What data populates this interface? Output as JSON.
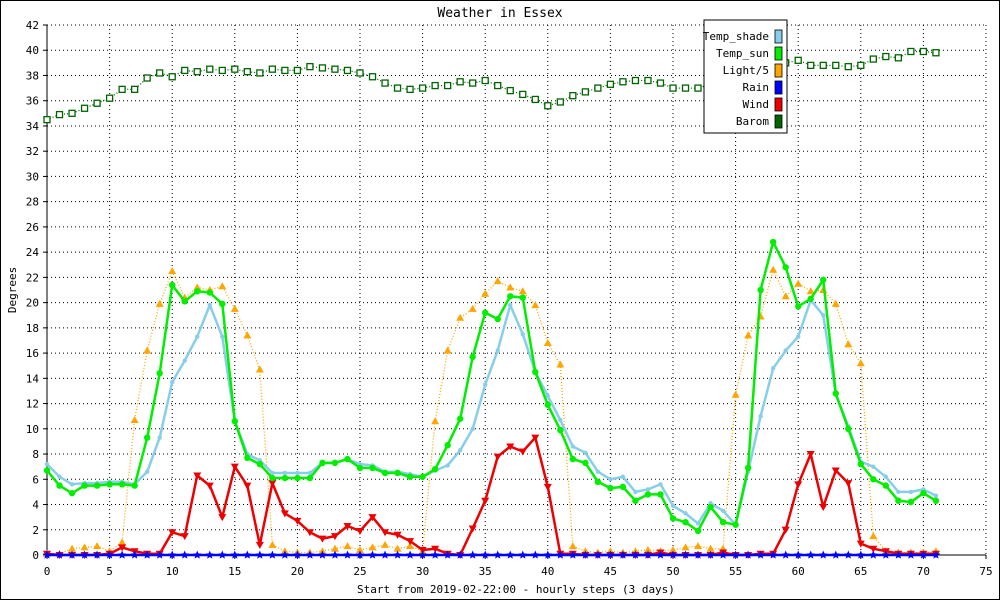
{
  "chart_data": {
    "type": "line",
    "title": "Weather in Essex",
    "xlabel": "Start from 2019-02-22:00 - hourly steps (3 days)",
    "ylabel": "Degrees",
    "xlim": [
      0,
      75
    ],
    "ylim": [
      0,
      42
    ],
    "xticks": [
      "0",
      "5",
      "10",
      "15",
      "20",
      "25",
      "30",
      "35",
      "40",
      "45",
      "50",
      "55",
      "60",
      "65",
      "70",
      "75"
    ],
    "yticks": [
      "0",
      "2",
      "4",
      "6",
      "8",
      "10",
      "12",
      "14",
      "16",
      "18",
      "20",
      "22",
      "24",
      "26",
      "28",
      "30",
      "32",
      "34",
      "36",
      "38",
      "40",
      "42"
    ],
    "grid": true,
    "legend_position": "top-right",
    "series": [
      {
        "name": "Temp_shade",
        "color": "#87ceeb",
        "values": [
          7.2,
          6.2,
          5.6,
          5.7,
          5.7,
          5.8,
          5.8,
          5.6,
          6.6,
          9.3,
          13.7,
          15.4,
          17.3,
          19.8,
          17.3,
          10.6,
          8.0,
          7.5,
          6.5,
          6.5,
          6.5,
          6.5,
          7.3,
          7.3,
          7.6,
          7.2,
          7.1,
          6.6,
          6.6,
          6.4,
          6.2,
          6.7,
          7.1,
          8.3,
          10.0,
          13.5,
          16.2,
          19.8,
          17.5,
          14.5,
          12.6,
          10.7,
          8.6,
          8.1,
          6.6,
          6.0,
          6.2,
          5.0,
          5.2,
          5.6,
          3.9,
          3.3,
          2.5,
          4.1,
          3.5,
          2.4,
          6.6,
          11.0,
          14.8,
          16.2,
          17.3,
          20.2,
          19.0,
          12.7,
          10.2,
          7.4,
          7.0,
          6.2,
          5.0,
          5.0,
          5.2,
          4.7
        ]
      },
      {
        "name": "Temp_sun",
        "color": "#00ee00",
        "values": [
          6.7,
          5.5,
          4.9,
          5.5,
          5.5,
          5.6,
          5.6,
          5.5,
          9.3,
          14.4,
          21.4,
          20.1,
          20.9,
          20.8,
          19.9,
          10.6,
          7.7,
          7.2,
          6.1,
          6.1,
          6.1,
          6.1,
          7.3,
          7.3,
          7.6,
          6.9,
          6.9,
          6.5,
          6.5,
          6.2,
          6.2,
          6.8,
          8.7,
          10.8,
          15.7,
          19.2,
          18.7,
          20.5,
          20.4,
          14.5,
          11.9,
          9.9,
          7.6,
          7.3,
          5.8,
          5.3,
          5.4,
          4.3,
          4.8,
          4.8,
          2.9,
          2.6,
          1.9,
          3.8,
          2.6,
          2.4,
          6.9,
          21.0,
          24.8,
          22.8,
          19.7,
          20.3,
          21.8,
          12.8,
          10.0,
          7.2,
          6.0,
          5.5,
          4.3,
          4.2,
          4.9,
          4.3
        ]
      },
      {
        "name": "Light/5",
        "color": "#ffa500",
        "values": [
          0.1,
          0.1,
          0.5,
          0.6,
          0.7,
          0.3,
          1.0,
          10.7,
          16.2,
          19.9,
          22.5,
          20.4,
          21.2,
          21.0,
          21.3,
          19.5,
          17.4,
          14.7,
          0.8,
          0.3,
          0.2,
          0.2,
          0.3,
          0.5,
          0.7,
          0.4,
          0.6,
          0.8,
          0.5,
          0.7,
          0.3,
          10.6,
          16.2,
          18.8,
          19.5,
          20.7,
          21.7,
          21.2,
          20.9,
          19.8,
          16.8,
          15.1,
          0.7,
          0.3,
          0.2,
          0.3,
          0.2,
          0.3,
          0.4,
          0.3,
          0.4,
          0.6,
          0.7,
          0.5,
          0.5,
          12.7,
          17.4,
          18.9,
          22.6,
          20.5,
          21.5,
          20.9,
          21.0,
          19.9,
          16.7,
          15.2,
          1.5,
          0.3,
          0.2,
          0.2,
          0.2,
          0.3
        ]
      },
      {
        "name": "Rain",
        "color": "#0000ff",
        "values": [
          0,
          0,
          0,
          0,
          0,
          0,
          0,
          0,
          0,
          0,
          0,
          0,
          0,
          0,
          0,
          0,
          0,
          0,
          0,
          0,
          0,
          0,
          0,
          0,
          0,
          0,
          0,
          0,
          0,
          0,
          0,
          0,
          0,
          0,
          0,
          0,
          0,
          0,
          0,
          0,
          0,
          0,
          0,
          0,
          0,
          0,
          0,
          0,
          0,
          0,
          0,
          0,
          0,
          0,
          0,
          0,
          0,
          0,
          0,
          0,
          0,
          0,
          0,
          0,
          0,
          0,
          0,
          0,
          0,
          0,
          0,
          0
        ]
      },
      {
        "name": "Wind",
        "color": "#ee0000",
        "values": [
          0.1,
          0,
          0,
          0,
          0,
          0.1,
          0.6,
          0.3,
          0.1,
          0.1,
          1.8,
          1.5,
          6.3,
          5.5,
          3.0,
          7.0,
          5.5,
          0.8,
          5.7,
          3.3,
          2.7,
          1.8,
          1.3,
          1.5,
          2.3,
          1.9,
          3.0,
          1.8,
          1.6,
          1.1,
          0.4,
          0.5,
          0.1,
          0,
          2.1,
          4.3,
          7.8,
          8.6,
          8.2,
          9.3,
          5.4,
          0.1,
          0.1,
          0,
          0,
          0,
          0,
          0,
          0,
          0.2,
          0,
          0,
          0,
          0,
          0.2,
          0,
          0,
          0.1,
          0.1,
          2.0,
          5.6,
          8.0,
          3.8,
          6.7,
          5.7,
          0.9,
          0.5,
          0.3,
          0.1,
          0.1,
          0.1,
          0.1
        ]
      },
      {
        "name": "Barom",
        "color": "#006400",
        "values": [
          34.5,
          34.9,
          35.0,
          35.4,
          35.8,
          36.2,
          36.9,
          36.9,
          37.8,
          38.2,
          37.9,
          38.4,
          38.3,
          38.5,
          38.4,
          38.5,
          38.3,
          38.2,
          38.5,
          38.4,
          38.4,
          38.7,
          38.6,
          38.5,
          38.4,
          38.2,
          37.9,
          37.4,
          37.0,
          36.9,
          37.0,
          37.2,
          37.2,
          37.5,
          37.4,
          37.6,
          37.2,
          36.8,
          36.5,
          36.1,
          35.6,
          35.9,
          36.4,
          36.7,
          37.0,
          37.3,
          37.5,
          37.6,
          37.6,
          37.4,
          37.0,
          37.0,
          37.0,
          37.3,
          37.8,
          38.1,
          38.5,
          38.6,
          38.8,
          39.0,
          39.2,
          38.8,
          38.8,
          38.8,
          38.7,
          38.8,
          39.3,
          39.5,
          39.4,
          39.9,
          39.9,
          39.8
        ]
      }
    ]
  }
}
